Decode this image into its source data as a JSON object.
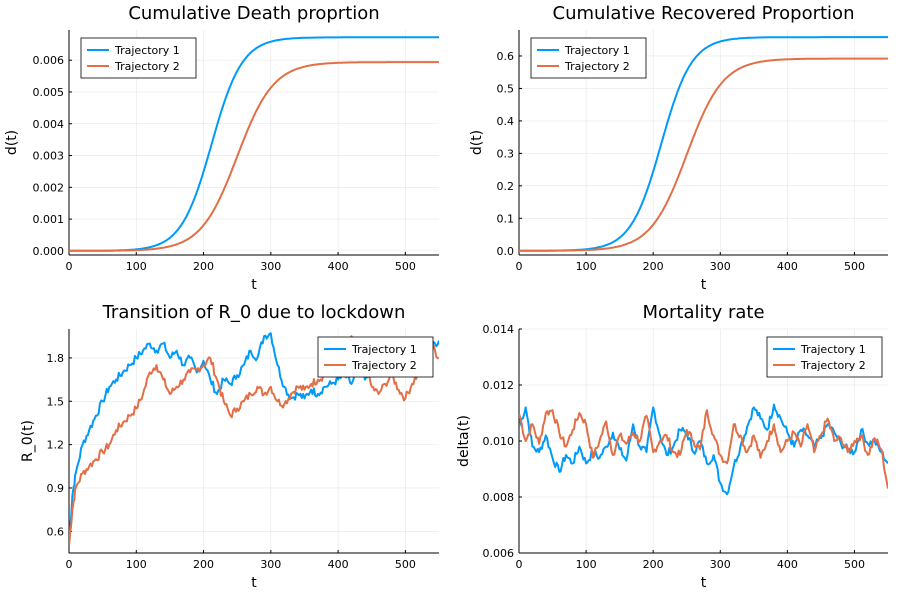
{
  "colors": {
    "series1": "#009af9",
    "series2": "#e26f46",
    "grid": "#e6e6e6",
    "frame": "#000000"
  },
  "chart_data": [
    {
      "type": "line",
      "title": "Cumulative Death proprtion",
      "xlabel": "t",
      "ylabel": "d(t)",
      "xlim": [
        0,
        550
      ],
      "ylim": [
        -0.00013,
        0.00695
      ],
      "xticks": [
        0,
        100,
        200,
        300,
        400,
        500
      ],
      "yticks": [
        0,
        0.001,
        0.002,
        0.003,
        0.004,
        0.005,
        0.006
      ],
      "ytick_labels": [
        "0.000",
        "0.001",
        "0.002",
        "0.003",
        "0.004",
        "0.005",
        "0.006"
      ],
      "legend": "top-left",
      "grid": true,
      "series": [
        {
          "name": "Trajectory 1",
          "kind": "logistic",
          "L": 0.00672,
          "k": 0.044,
          "t0": 212
        },
        {
          "name": "Trajectory 2",
          "kind": "logistic",
          "L": 0.00594,
          "k": 0.037,
          "t0": 250
        }
      ]
    },
    {
      "type": "line",
      "title": "Cumulative Recovered Proportion",
      "xlabel": "t",
      "ylabel": "d(t)",
      "xlim": [
        0,
        550
      ],
      "ylim": [
        -0.013,
        0.68
      ],
      "xticks": [
        0,
        100,
        200,
        300,
        400,
        500
      ],
      "yticks": [
        0,
        0.1,
        0.2,
        0.3,
        0.4,
        0.5,
        0.6
      ],
      "ytick_labels": [
        "0.0",
        "0.1",
        "0.2",
        "0.3",
        "0.4",
        "0.5",
        "0.6"
      ],
      "legend": "top-left",
      "grid": true,
      "series": [
        {
          "name": "Trajectory 1",
          "kind": "logistic",
          "L": 0.658,
          "k": 0.044,
          "t0": 212
        },
        {
          "name": "Trajectory 2",
          "kind": "logistic",
          "L": 0.592,
          "k": 0.037,
          "t0": 250
        }
      ]
    },
    {
      "type": "line",
      "title": "Transition of R_0 due to lockdown",
      "xlabel": "t",
      "ylabel": "R_0(t)",
      "xlim": [
        0,
        550
      ],
      "ylim": [
        0.45,
        2.0
      ],
      "xticks": [
        0,
        100,
        200,
        300,
        400,
        500
      ],
      "yticks": [
        0.6,
        0.9,
        1.2,
        1.5,
        1.8
      ],
      "ytick_labels": [
        "0.6",
        "0.9",
        "1.2",
        "1.5",
        "1.8"
      ],
      "legend": "top-right",
      "grid": true,
      "series": [
        {
          "name": "Trajectory 1",
          "x": [
            0,
            5,
            10,
            20,
            30,
            40,
            50,
            60,
            70,
            80,
            90,
            100,
            110,
            120,
            130,
            140,
            150,
            160,
            170,
            180,
            190,
            200,
            210,
            220,
            230,
            240,
            250,
            260,
            270,
            280,
            290,
            300,
            310,
            320,
            330,
            340,
            350,
            360,
            370,
            380,
            390,
            400,
            410,
            420,
            430,
            440,
            450,
            460,
            470,
            480,
            490,
            500,
            510,
            520,
            530,
            540,
            550
          ],
          "y": [
            0.5,
            0.85,
            1.0,
            1.2,
            1.3,
            1.4,
            1.5,
            1.6,
            1.65,
            1.7,
            1.75,
            1.8,
            1.85,
            1.9,
            1.85,
            1.9,
            1.8,
            1.85,
            1.75,
            1.8,
            1.7,
            1.78,
            1.65,
            1.55,
            1.65,
            1.62,
            1.68,
            1.75,
            1.85,
            1.8,
            1.95,
            1.97,
            1.75,
            1.6,
            1.52,
            1.55,
            1.52,
            1.58,
            1.55,
            1.6,
            1.62,
            1.65,
            1.68,
            1.62,
            1.72,
            1.65,
            1.75,
            1.7,
            1.75,
            1.68,
            1.72,
            1.78,
            1.75,
            1.85,
            1.8,
            1.88,
            1.92
          ]
        },
        {
          "name": "Trajectory 2",
          "x": [
            0,
            5,
            10,
            20,
            30,
            40,
            50,
            60,
            70,
            80,
            90,
            100,
            110,
            120,
            130,
            140,
            150,
            160,
            170,
            180,
            190,
            200,
            210,
            220,
            230,
            240,
            250,
            260,
            270,
            280,
            290,
            300,
            310,
            320,
            330,
            340,
            350,
            360,
            370,
            380,
            390,
            400,
            410,
            420,
            430,
            440,
            450,
            460,
            470,
            480,
            490,
            500,
            510,
            520,
            530,
            540,
            550
          ],
          "y": [
            0.5,
            0.75,
            0.9,
            1.0,
            1.05,
            1.1,
            1.15,
            1.2,
            1.3,
            1.35,
            1.4,
            1.45,
            1.55,
            1.7,
            1.75,
            1.65,
            1.55,
            1.6,
            1.65,
            1.7,
            1.72,
            1.75,
            1.8,
            1.65,
            1.5,
            1.4,
            1.45,
            1.5,
            1.55,
            1.6,
            1.55,
            1.6,
            1.5,
            1.48,
            1.55,
            1.6,
            1.58,
            1.62,
            1.65,
            1.68,
            1.72,
            1.75,
            1.82,
            1.95,
            1.82,
            1.75,
            1.6,
            1.55,
            1.62,
            1.68,
            1.58,
            1.52,
            1.62,
            1.7,
            1.82,
            1.88,
            1.8
          ]
        }
      ]
    },
    {
      "type": "line",
      "title": "Mortality rate",
      "xlabel": "t",
      "ylabel": "delta(t)",
      "xlim": [
        0,
        550
      ],
      "ylim": [
        0.006,
        0.014
      ],
      "xticks": [
        0,
        100,
        200,
        300,
        400,
        500
      ],
      "yticks": [
        0.006,
        0.008,
        0.01,
        0.012,
        0.014
      ],
      "ytick_labels": [
        "0.006",
        "0.008",
        "0.010",
        "0.012",
        "0.014"
      ],
      "legend": "top-right",
      "grid": true,
      "series": [
        {
          "name": "Trajectory 1",
          "x": [
            0,
            10,
            20,
            30,
            40,
            50,
            60,
            70,
            80,
            90,
            100,
            110,
            120,
            130,
            140,
            150,
            160,
            170,
            180,
            190,
            200,
            210,
            220,
            230,
            240,
            250,
            260,
            270,
            280,
            290,
            300,
            310,
            320,
            330,
            340,
            350,
            360,
            370,
            380,
            390,
            400,
            410,
            420,
            430,
            440,
            450,
            460,
            470,
            480,
            490,
            500,
            510,
            520,
            530,
            540,
            550
          ],
          "y": [
            0.0105,
            0.0112,
            0.0098,
            0.0096,
            0.0102,
            0.0094,
            0.0089,
            0.0095,
            0.0092,
            0.0098,
            0.0092,
            0.0096,
            0.0094,
            0.0098,
            0.0103,
            0.0097,
            0.0093,
            0.0106,
            0.0098,
            0.0096,
            0.0112,
            0.0102,
            0.0095,
            0.0098,
            0.0104,
            0.0103,
            0.0096,
            0.01,
            0.0092,
            0.0095,
            0.0085,
            0.0081,
            0.0091,
            0.0098,
            0.0105,
            0.0112,
            0.0108,
            0.0104,
            0.0113,
            0.0108,
            0.0103,
            0.0098,
            0.0104,
            0.0102,
            0.0098,
            0.0101,
            0.0106,
            0.0103,
            0.0099,
            0.0097,
            0.0096,
            0.0104,
            0.0099,
            0.01,
            0.0096,
            0.0092
          ]
        },
        {
          "name": "Trajectory 2",
          "x": [
            0,
            10,
            20,
            30,
            40,
            50,
            60,
            70,
            80,
            90,
            100,
            110,
            120,
            130,
            140,
            150,
            160,
            170,
            180,
            190,
            200,
            210,
            220,
            230,
            240,
            250,
            260,
            270,
            280,
            290,
            300,
            310,
            320,
            330,
            340,
            350,
            360,
            370,
            380,
            390,
            400,
            410,
            420,
            430,
            440,
            450,
            460,
            470,
            480,
            490,
            500,
            510,
            520,
            530,
            540,
            550
          ],
          "y": [
            0.011,
            0.01,
            0.0106,
            0.0099,
            0.011,
            0.0111,
            0.0103,
            0.0098,
            0.0104,
            0.011,
            0.0106,
            0.0094,
            0.01,
            0.0107,
            0.0095,
            0.0102,
            0.0099,
            0.0103,
            0.01,
            0.0109,
            0.0096,
            0.01,
            0.0102,
            0.0096,
            0.0095,
            0.0104,
            0.01,
            0.0097,
            0.0111,
            0.0102,
            0.0095,
            0.0092,
            0.0106,
            0.0102,
            0.0096,
            0.0102,
            0.0094,
            0.01,
            0.0106,
            0.0096,
            0.01,
            0.0103,
            0.0098,
            0.0106,
            0.0096,
            0.0102,
            0.0108,
            0.01,
            0.0101,
            0.0096,
            0.01,
            0.0102,
            0.0095,
            0.0101,
            0.0097,
            0.0083
          ]
        }
      ]
    }
  ]
}
